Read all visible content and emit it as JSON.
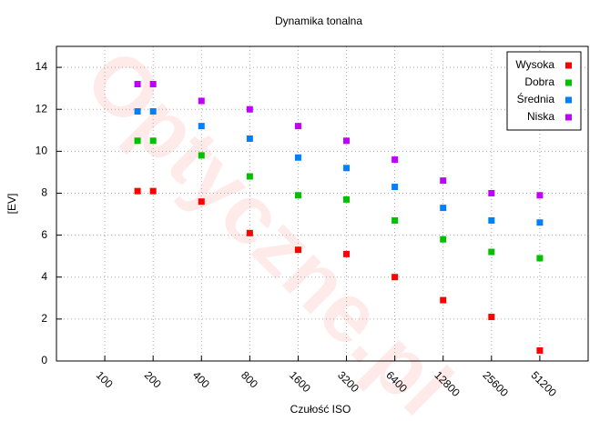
{
  "chart_data": {
    "type": "scatter",
    "title": "Dynamika tonalna",
    "watermark": "Optyczne.pl",
    "xlabel": "Czułość ISO",
    "ylabel": "[EV]",
    "x": [
      160,
      200,
      400,
      800,
      1600,
      3200,
      6400,
      12800,
      25600,
      51200
    ],
    "xscale": "log2",
    "xlim": [
      50,
      102400
    ],
    "xticks": [
      100,
      200,
      400,
      800,
      1600,
      3200,
      6400,
      12800,
      25600,
      51200
    ],
    "ylim": [
      0,
      15
    ],
    "yticks": [
      0,
      2,
      4,
      6,
      8,
      10,
      12,
      14
    ],
    "grid": true,
    "legend": "top-right",
    "series": [
      {
        "name": "Wysoka",
        "color": "#ff0000",
        "values": [
          8.1,
          8.1,
          7.6,
          6.1,
          5.3,
          5.1,
          4.0,
          2.9,
          2.1,
          0.5
        ]
      },
      {
        "name": "Dobra",
        "color": "#00c000",
        "values": [
          10.5,
          10.5,
          9.8,
          8.8,
          7.9,
          7.7,
          6.7,
          5.8,
          5.2,
          4.9
        ]
      },
      {
        "name": "Średnia",
        "color": "#0080ff",
        "values": [
          11.9,
          11.9,
          11.2,
          10.6,
          9.7,
          9.2,
          8.3,
          7.3,
          6.7,
          6.6
        ]
      },
      {
        "name": "Niska",
        "color": "#c000ff",
        "values": [
          13.2,
          13.2,
          12.4,
          12.0,
          11.2,
          10.5,
          9.6,
          8.6,
          8.0,
          7.9
        ]
      }
    ]
  }
}
